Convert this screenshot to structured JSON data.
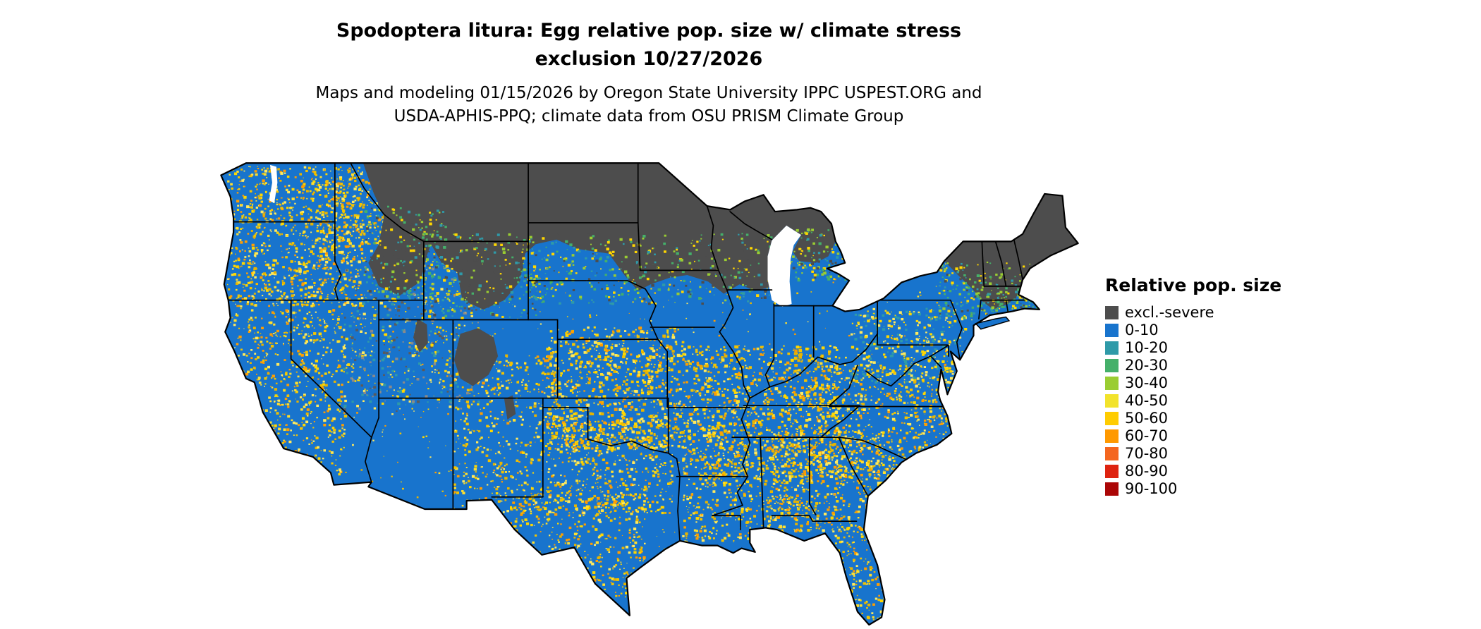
{
  "title": {
    "line1": "Spodoptera litura: Egg relative pop. size w/ climate stress",
    "line2": "exclusion 10/27/2026"
  },
  "subtitle": {
    "line1": "Maps and modeling 01/15/2026 by Oregon State University IPPC USPEST.ORG and",
    "line2": "USDA-APHIS-PPQ; climate data from OSU PRISM Climate Group"
  },
  "legend": {
    "title": "Relative pop. size",
    "items": [
      {
        "label": "excl.-severe",
        "color": "#4d4d4d"
      },
      {
        "label": "0-10",
        "color": "#1874cd"
      },
      {
        "label": "10-20",
        "color": "#2f9aa8"
      },
      {
        "label": "20-30",
        "color": "#45b06a"
      },
      {
        "label": "30-40",
        "color": "#9acd32"
      },
      {
        "label": "40-50",
        "color": "#f2e32b"
      },
      {
        "label": "50-60",
        "color": "#ffcc00"
      },
      {
        "label": "60-70",
        "color": "#ff9900"
      },
      {
        "label": "70-80",
        "color": "#f4661f"
      },
      {
        "label": "80-90",
        "color": "#de2310"
      },
      {
        "label": "90-100",
        "color": "#ab0606"
      }
    ]
  },
  "colors": {
    "background": "#ffffff",
    "base_fill": "#1874cd",
    "exclusion_fill": "#4d4d4d",
    "state_border": "#000000",
    "water": "#ffffff"
  }
}
